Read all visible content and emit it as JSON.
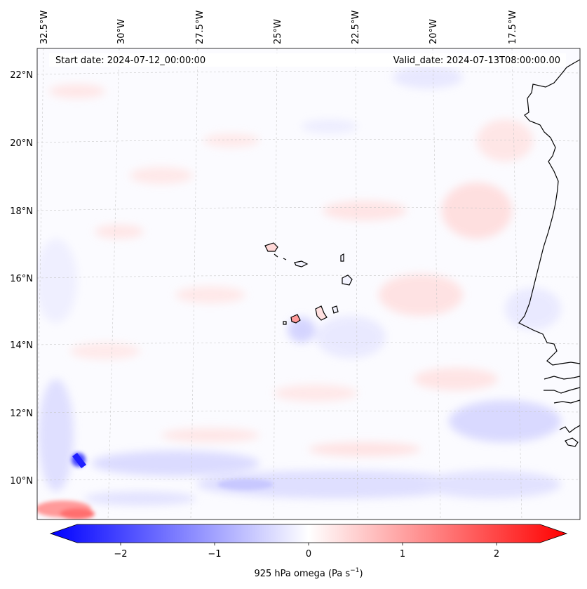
{
  "header": {
    "start_date": "Start date: 2024-07-12_00:00:00",
    "valid_date": "Valid_date: 2024-07-13T08:00:00.00"
  },
  "map": {
    "lon_labels": [
      "32.5°W",
      "30°W",
      "27.5°W",
      "25°W",
      "22.5°W",
      "20°W",
      "17.5°W"
    ],
    "lat_labels": [
      "22°N",
      "20°N",
      "18°N",
      "16°N",
      "14°N",
      "12°N",
      "10°N"
    ]
  },
  "colorbar": {
    "ticks": [
      "−2",
      "−1",
      "0",
      "1",
      "2"
    ],
    "label": "925 hPa omega (Pa s",
    "label_exp": "−1",
    "label_end": ")",
    "vmin": -2.6,
    "vmax": 2.6,
    "colors": {
      "negative": "#0000ff",
      "zero": "#ffffff",
      "positive": "#ff0000"
    }
  }
}
